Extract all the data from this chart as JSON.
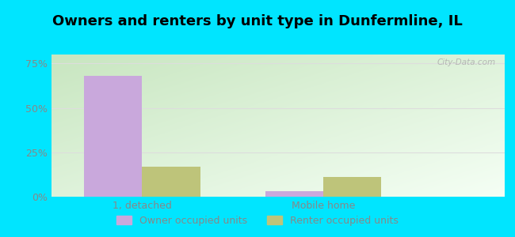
{
  "title": "Owners and renters by unit type in Dunfermline, IL",
  "categories": [
    "1, detached",
    "Mobile home"
  ],
  "owner_values": [
    68.0,
    3.0
  ],
  "renter_values": [
    17.0,
    11.0
  ],
  "owner_color": "#c9a8dc",
  "renter_color": "#bec47a",
  "background_color": "#00e5ff",
  "plot_bg_topleft": "#c8e6c0",
  "plot_bg_bottomright": "#f5fff5",
  "yticks": [
    0,
    25,
    50,
    75
  ],
  "ylim": [
    0,
    80
  ],
  "bar_width": 0.32,
  "legend_labels": [
    "Owner occupied units",
    "Renter occupied units"
  ],
  "watermark": "City-Data.com",
  "title_fontsize": 13,
  "axis_label_fontsize": 9,
  "legend_fontsize": 9,
  "tick_color": "#888888",
  "grid_color": "#dddddd"
}
